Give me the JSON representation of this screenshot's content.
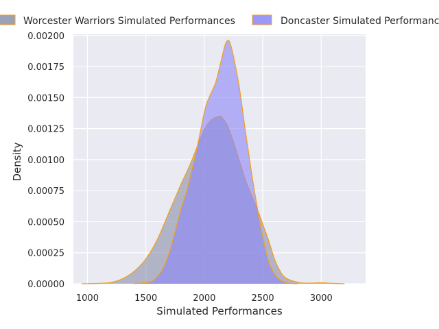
{
  "colors": {
    "plot_background": "#eaeaf2",
    "grid": "#ffffff",
    "edge": "#f0a020",
    "worcester_fill": "#8b90a8",
    "doncaster_fill": "#8a86f8"
  },
  "chart_data": {
    "type": "area",
    "title": "",
    "xlabel": "Simulated Performances",
    "ylabel": "Density",
    "xlim": [
      880,
      3380
    ],
    "ylim": [
      0,
      0.00201
    ],
    "x_ticks": [
      1000,
      1500,
      2000,
      2500,
      3000
    ],
    "x_tick_labels": [
      "1000",
      "1500",
      "2000",
      "2500",
      "3000"
    ],
    "y_ticks": [
      0,
      0.00025,
      0.0005,
      0.00075,
      0.001,
      0.00125,
      0.0015,
      0.00175,
      0.002
    ],
    "y_tick_labels": [
      "0.00000",
      "0.00025",
      "0.00050",
      "0.00075",
      "0.00100",
      "0.00125",
      "0.00150",
      "0.00175",
      "0.00200"
    ],
    "legend_position": "top",
    "series": [
      {
        "name": "Worcester Warriors Simulated Performances",
        "color": "#8b90a8",
        "opacity": 0.6,
        "x": [
          950,
          1100,
          1200,
          1300,
          1400,
          1500,
          1600,
          1700,
          1800,
          1850,
          1900,
          1950,
          2000,
          2050,
          2100,
          2130,
          2150,
          2200,
          2250,
          2300,
          2350,
          2400,
          2450,
          2500,
          2550,
          2600,
          2650,
          2700,
          2800,
          2900,
          3000,
          3100,
          3200
        ],
        "y": [
          0,
          3e-06,
          1e-05,
          4e-05,
          0.0001,
          0.0002,
          0.00036,
          0.00058,
          0.0008,
          0.0009,
          0.00101,
          0.00113,
          0.00124,
          0.00131,
          0.00134,
          0.00135,
          0.00134,
          0.00127,
          0.00114,
          0.00099,
          0.00084,
          0.00072,
          0.00061,
          0.00048,
          0.00035,
          0.0002,
          0.0001,
          4.5e-05,
          1.2e-05,
          5e-06,
          8e-06,
          3e-06,
          0
        ]
      },
      {
        "name": "Doncaster Simulated Performances",
        "color": "#8a86f8",
        "opacity": 0.6,
        "x": [
          1400,
          1500,
          1550,
          1600,
          1650,
          1700,
          1750,
          1800,
          1850,
          1900,
          1950,
          2000,
          2020,
          2050,
          2100,
          2150,
          2180,
          2200,
          2220,
          2250,
          2300,
          2350,
          2400,
          2450,
          2500,
          2550,
          2600,
          2650,
          2700,
          2750,
          2800
        ],
        "y": [
          0,
          1e-05,
          2e-05,
          6e-05,
          0.00013,
          0.00025,
          0.00042,
          0.0006,
          0.00075,
          0.00094,
          0.00115,
          0.00138,
          0.00145,
          0.00152,
          0.00163,
          0.00182,
          0.00193,
          0.00196,
          0.00194,
          0.00183,
          0.00158,
          0.00124,
          0.00092,
          0.00063,
          0.00038,
          0.00018,
          8e-05,
          3e-05,
          1e-05,
          3e-06,
          0
        ]
      }
    ]
  }
}
